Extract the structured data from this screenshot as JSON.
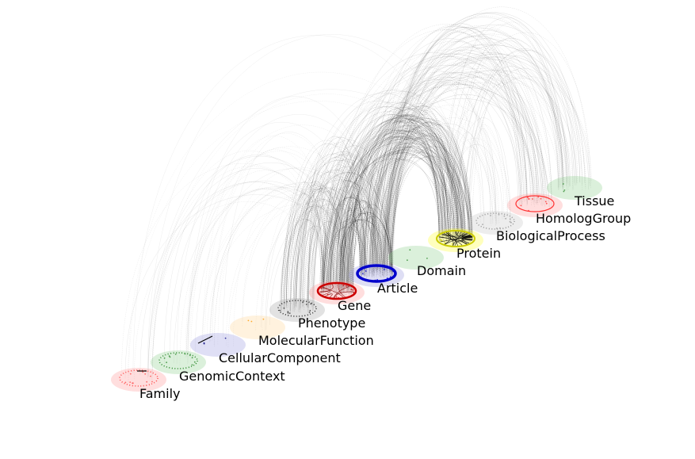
{
  "diagram": {
    "type": "hive-plot-layered-network",
    "edge_color": "#000000",
    "layers": [
      {
        "id": "family",
        "label": "Family",
        "halo_color": "#ff9999",
        "ring_color": "#ff4d4d",
        "ring_style": "dotted"
      },
      {
        "id": "genomic-context",
        "label": "GenomicContext",
        "halo_color": "#8fcf8f",
        "ring_color": "#2e8b2e",
        "ring_style": "dotted"
      },
      {
        "id": "cellular-component",
        "label": "CellularComponent",
        "halo_color": "#9a9ae0",
        "ring_color": "#000080",
        "ring_style": "none"
      },
      {
        "id": "molecular-function",
        "label": "MolecularFunction",
        "halo_color": "#ffd699",
        "ring_color": "#ff9900",
        "ring_style": "none"
      },
      {
        "id": "phenotype",
        "label": "Phenotype",
        "halo_color": "#a6a6a6",
        "ring_color": "#333333",
        "ring_style": "dotted"
      },
      {
        "id": "gene",
        "label": "Gene",
        "halo_color": "#ff9999",
        "ring_color": "#cc0000",
        "ring_style": "solid"
      },
      {
        "id": "article",
        "label": "Article",
        "halo_color": "#9999dd",
        "ring_color": "#0000cc",
        "ring_style": "solid"
      },
      {
        "id": "domain",
        "label": "Domain",
        "halo_color": "#8fcf8f",
        "ring_color": "#2e8b2e",
        "ring_style": "none"
      },
      {
        "id": "protein",
        "label": "Protein",
        "halo_color": "#ffff33",
        "ring_color": "#cccc00",
        "ring_style": "solid"
      },
      {
        "id": "biological-process",
        "label": "BiologicalProcess",
        "halo_color": "#c8c8c8",
        "ring_color": "#999999",
        "ring_style": "dotted"
      },
      {
        "id": "homolog-group",
        "label": "HomologGroup",
        "halo_color": "#ff9999",
        "ring_color": "#ff3333",
        "ring_style": "solid"
      },
      {
        "id": "tissue",
        "label": "Tissue",
        "halo_color": "#8fcf8f",
        "ring_color": "#2e8b2e",
        "ring_style": "none"
      }
    ]
  }
}
